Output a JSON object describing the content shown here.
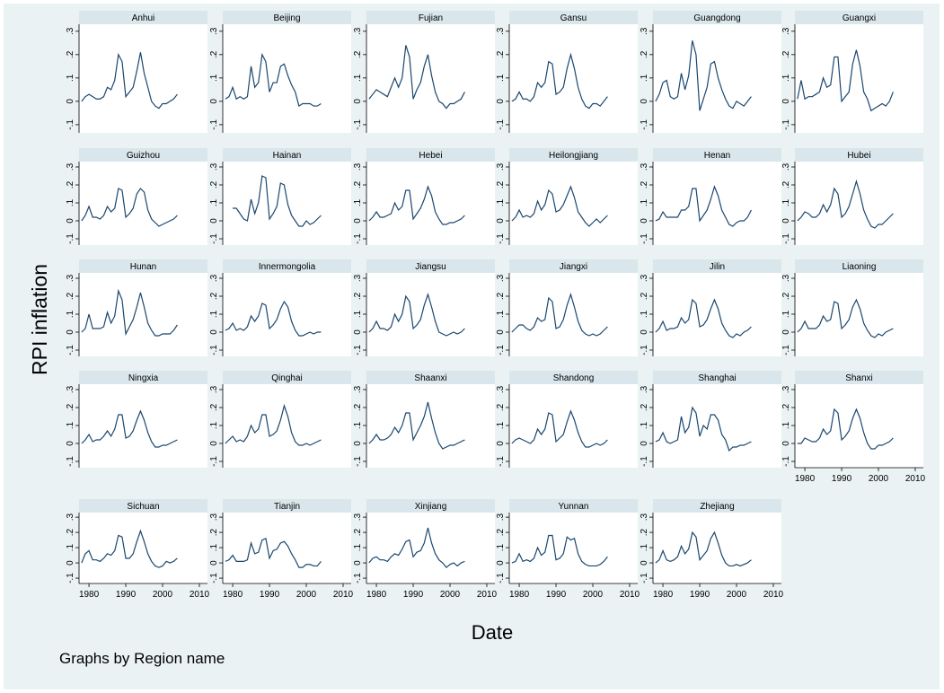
{
  "chart_data": {
    "type": "line",
    "ytitle": "RPI inflation",
    "xtitle": "Date",
    "note": "Graphs by Region name",
    "color": "#1a476f",
    "x": [
      1978,
      1979,
      1980,
      1981,
      1982,
      1983,
      1984,
      1985,
      1986,
      1987,
      1988,
      1989,
      1990,
      1991,
      1992,
      1993,
      1994,
      1995,
      1996,
      1997,
      1998,
      1999,
      2000,
      2001,
      2002,
      2003,
      2004
    ],
    "xlim": [
      1977.3,
      2012.2
    ],
    "xticks": [
      1980,
      1990,
      2000,
      2010
    ],
    "ylim": [
      -0.135,
      0.33
    ],
    "yticks": [
      {
        "value": -0.1,
        "label": "-.1"
      },
      0,
      {
        "value": 0.1,
        "label": ".1"
      },
      {
        "value": 0.2,
        "label": ".2"
      },
      {
        "value": 0.3,
        "label": ".3"
      }
    ],
    "series": [
      {
        "name": "Anhui",
        "values": [
          0.0,
          0.02,
          0.03,
          0.02,
          0.01,
          0.01,
          0.02,
          0.06,
          0.05,
          0.09,
          0.2,
          0.17,
          0.02,
          0.04,
          0.06,
          0.13,
          0.21,
          0.12,
          0.06,
          0.0,
          -0.02,
          -0.03,
          -0.01,
          -0.01,
          0.0,
          0.01,
          0.03
        ]
      },
      {
        "name": "Beijing",
        "values": [
          0.01,
          0.02,
          0.06,
          0.01,
          0.02,
          0.01,
          0.02,
          0.15,
          0.06,
          0.08,
          0.2,
          0.17,
          0.04,
          0.08,
          0.08,
          0.15,
          0.16,
          0.11,
          0.07,
          0.04,
          -0.02,
          -0.01,
          -0.01,
          -0.01,
          -0.02,
          -0.02,
          -0.01
        ]
      },
      {
        "name": "Fujian",
        "values": [
          0.01,
          0.03,
          0.05,
          0.04,
          0.03,
          0.02,
          0.06,
          0.1,
          0.06,
          0.1,
          0.24,
          0.19,
          0.01,
          0.05,
          0.08,
          0.15,
          0.2,
          0.11,
          0.04,
          0.0,
          -0.01,
          -0.03,
          -0.01,
          -0.01,
          0.0,
          0.01,
          0.04
        ]
      },
      {
        "name": "Gansu",
        "values": [
          0.0,
          0.01,
          0.04,
          0.01,
          0.01,
          0.0,
          0.02,
          0.08,
          0.06,
          0.08,
          0.17,
          0.16,
          0.03,
          0.04,
          0.06,
          0.14,
          0.2,
          0.14,
          0.06,
          0.01,
          -0.02,
          -0.03,
          -0.01,
          -0.01,
          -0.02,
          0.0,
          0.02
        ]
      },
      {
        "name": "Guangdong",
        "values": [
          0.0,
          0.03,
          0.08,
          0.09,
          0.02,
          0.01,
          0.02,
          0.12,
          0.05,
          0.11,
          0.26,
          0.2,
          -0.04,
          0.01,
          0.06,
          0.16,
          0.17,
          0.1,
          0.05,
          0.01,
          -0.02,
          -0.03,
          0.0,
          -0.01,
          -0.02,
          0.0,
          0.02
        ]
      },
      {
        "name": "Guangxi",
        "values": [
          0.01,
          0.09,
          0.01,
          0.02,
          0.02,
          0.03,
          0.04,
          0.1,
          0.06,
          0.07,
          0.19,
          0.19,
          0.0,
          0.02,
          0.04,
          0.16,
          0.22,
          0.15,
          0.04,
          0.01,
          -0.04,
          -0.03,
          -0.02,
          -0.01,
          -0.02,
          0.0,
          0.04
        ]
      },
      {
        "name": "Guizhou",
        "values": [
          0.0,
          0.03,
          0.08,
          0.02,
          0.02,
          0.01,
          0.03,
          0.08,
          0.05,
          0.07,
          0.18,
          0.17,
          0.02,
          0.04,
          0.07,
          0.15,
          0.18,
          0.16,
          0.06,
          0.01,
          -0.01,
          -0.03,
          -0.02,
          -0.01,
          0.0,
          0.01,
          0.03
        ]
      },
      {
        "name": "Hainan",
        "values": [
          null,
          null,
          0.07,
          0.07,
          0.04,
          0.01,
          0.0,
          0.12,
          0.04,
          0.1,
          0.25,
          0.24,
          0.01,
          0.04,
          0.08,
          0.21,
          0.2,
          0.09,
          0.03,
          0.0,
          -0.03,
          -0.03,
          0.0,
          -0.02,
          -0.01,
          0.01,
          0.03
        ]
      },
      {
        "name": "Hebei",
        "values": [
          0.0,
          0.02,
          0.05,
          0.02,
          0.02,
          0.03,
          0.04,
          0.1,
          0.06,
          0.08,
          0.17,
          0.17,
          0.01,
          0.04,
          0.07,
          0.12,
          0.19,
          0.14,
          0.05,
          0.01,
          -0.02,
          -0.02,
          -0.01,
          -0.01,
          0.0,
          0.01,
          0.03
        ]
      },
      {
        "name": "Heilongjiang",
        "values": [
          0.0,
          0.02,
          0.06,
          0.02,
          0.03,
          0.02,
          0.04,
          0.11,
          0.06,
          0.09,
          0.17,
          0.15,
          0.05,
          0.06,
          0.09,
          0.14,
          0.19,
          0.13,
          0.05,
          0.02,
          -0.01,
          -0.03,
          -0.01,
          0.01,
          -0.01,
          0.01,
          0.03
        ]
      },
      {
        "name": "Henan",
        "values": [
          0.0,
          0.01,
          0.05,
          0.02,
          0.02,
          0.02,
          0.02,
          0.06,
          0.06,
          0.08,
          0.18,
          0.18,
          0.0,
          0.03,
          0.06,
          0.12,
          0.19,
          0.14,
          0.06,
          0.02,
          -0.02,
          -0.03,
          -0.01,
          0.0,
          0.0,
          0.02,
          0.06
        ]
      },
      {
        "name": "Hubei",
        "values": [
          0.0,
          0.02,
          0.05,
          0.04,
          0.02,
          0.02,
          0.04,
          0.09,
          0.05,
          0.09,
          0.18,
          0.15,
          0.02,
          0.04,
          0.08,
          0.15,
          0.22,
          0.15,
          0.06,
          0.01,
          -0.03,
          -0.04,
          -0.02,
          -0.02,
          0.0,
          0.02,
          0.04
        ]
      },
      {
        "name": "Hunan",
        "values": [
          0.0,
          0.02,
          0.1,
          0.02,
          0.02,
          0.02,
          0.03,
          0.11,
          0.05,
          0.09,
          0.23,
          0.18,
          -0.01,
          0.03,
          0.07,
          0.14,
          0.22,
          0.14,
          0.05,
          0.01,
          -0.02,
          -0.02,
          -0.01,
          -0.01,
          -0.01,
          0.01,
          0.04
        ]
      },
      {
        "name": "Innermongolia",
        "values": [
          0.01,
          0.02,
          0.05,
          0.01,
          0.02,
          0.01,
          0.03,
          0.09,
          0.06,
          0.09,
          0.16,
          0.15,
          0.02,
          0.04,
          0.07,
          0.13,
          0.17,
          0.14,
          0.06,
          0.01,
          -0.02,
          -0.02,
          -0.01,
          0.0,
          -0.01,
          0.0,
          0.0
        ]
      },
      {
        "name": "Jiangsu",
        "values": [
          0.0,
          0.02,
          0.06,
          0.02,
          0.02,
          0.01,
          0.03,
          0.1,
          0.06,
          0.1,
          0.2,
          0.17,
          0.02,
          0.04,
          0.07,
          0.15,
          0.21,
          0.14,
          0.06,
          0.0,
          -0.01,
          -0.02,
          -0.01,
          0.0,
          -0.01,
          0.0,
          0.02
        ]
      },
      {
        "name": "Jiangxi",
        "values": [
          0.0,
          0.02,
          0.04,
          0.04,
          0.02,
          0.01,
          0.03,
          0.08,
          0.06,
          0.07,
          0.19,
          0.17,
          0.02,
          0.03,
          0.07,
          0.15,
          0.21,
          0.14,
          0.06,
          0.01,
          -0.01,
          -0.02,
          -0.01,
          -0.02,
          -0.01,
          0.01,
          0.03
        ]
      },
      {
        "name": "Jilin",
        "values": [
          0.0,
          0.02,
          0.06,
          0.01,
          0.02,
          0.02,
          0.03,
          0.08,
          0.05,
          0.07,
          0.18,
          0.16,
          0.03,
          0.04,
          0.07,
          0.13,
          0.18,
          0.13,
          0.05,
          0.01,
          -0.02,
          -0.03,
          -0.01,
          -0.02,
          0.0,
          0.01,
          0.03
        ]
      },
      {
        "name": "Liaoning",
        "values": [
          0.0,
          0.02,
          0.06,
          0.02,
          0.02,
          0.02,
          0.04,
          0.09,
          0.06,
          0.07,
          0.17,
          0.16,
          0.02,
          0.04,
          0.07,
          0.14,
          0.18,
          0.13,
          0.05,
          0.01,
          -0.02,
          -0.03,
          -0.01,
          -0.02,
          0.0,
          0.01,
          0.02
        ]
      },
      {
        "name": "Ningxia",
        "values": [
          0.0,
          0.02,
          0.05,
          0.01,
          0.02,
          0.02,
          0.04,
          0.07,
          0.04,
          0.08,
          0.16,
          0.16,
          0.03,
          0.04,
          0.07,
          0.13,
          0.18,
          0.13,
          0.06,
          0.01,
          -0.02,
          -0.02,
          -0.01,
          -0.01,
          0.0,
          0.01,
          0.02
        ]
      },
      {
        "name": "Qinghai",
        "values": [
          0.0,
          0.02,
          0.04,
          0.01,
          0.02,
          0.01,
          0.04,
          0.1,
          0.06,
          0.08,
          0.16,
          0.16,
          0.04,
          0.05,
          0.07,
          0.13,
          0.21,
          0.15,
          0.06,
          0.01,
          -0.01,
          -0.01,
          0.0,
          -0.01,
          0.0,
          0.01,
          0.02
        ]
      },
      {
        "name": "Shaanxi",
        "values": [
          0.0,
          0.02,
          0.05,
          0.02,
          0.02,
          0.03,
          0.05,
          0.09,
          0.06,
          0.1,
          0.17,
          0.17,
          0.02,
          0.06,
          0.1,
          0.15,
          0.23,
          0.14,
          0.06,
          0.0,
          -0.03,
          -0.02,
          -0.01,
          -0.01,
          0.0,
          0.01,
          0.02
        ]
      },
      {
        "name": "Shandong",
        "values": [
          0.0,
          0.02,
          0.03,
          0.02,
          0.01,
          0.0,
          0.02,
          0.08,
          0.05,
          0.08,
          0.17,
          0.16,
          0.01,
          0.03,
          0.05,
          0.12,
          0.18,
          0.13,
          0.06,
          0.01,
          -0.02,
          -0.02,
          -0.01,
          0.0,
          -0.01,
          0.0,
          0.02
        ]
      },
      {
        "name": "Shanghai",
        "values": [
          0.01,
          0.02,
          0.06,
          0.01,
          0.0,
          0.01,
          0.02,
          0.15,
          0.06,
          0.09,
          0.2,
          0.17,
          0.04,
          0.1,
          0.08,
          0.16,
          0.16,
          0.13,
          0.05,
          0.02,
          -0.04,
          -0.02,
          -0.02,
          -0.01,
          -0.01,
          0.0,
          0.01
        ]
      },
      {
        "name": "Shanxi",
        "values": [
          0.0,
          0.0,
          0.03,
          0.02,
          0.01,
          0.01,
          0.03,
          0.08,
          0.05,
          0.07,
          0.19,
          0.17,
          0.02,
          0.04,
          0.07,
          0.14,
          0.19,
          0.14,
          0.06,
          0.0,
          -0.03,
          -0.03,
          -0.01,
          -0.01,
          0.0,
          0.01,
          0.03
        ]
      },
      {
        "name": "Sichuan",
        "values": [
          0.0,
          0.06,
          0.08,
          0.02,
          0.02,
          0.01,
          0.03,
          0.06,
          0.05,
          0.08,
          0.18,
          0.17,
          0.03,
          0.03,
          0.06,
          0.14,
          0.21,
          0.14,
          0.06,
          0.01,
          -0.02,
          -0.03,
          -0.02,
          0.01,
          0.0,
          0.01,
          0.03
        ]
      },
      {
        "name": "Tianjin",
        "values": [
          0.01,
          0.02,
          0.05,
          0.01,
          0.01,
          0.01,
          0.02,
          0.13,
          0.06,
          0.07,
          0.15,
          0.16,
          0.03,
          0.08,
          0.09,
          0.13,
          0.14,
          0.11,
          0.06,
          0.02,
          -0.03,
          -0.03,
          -0.01,
          -0.01,
          -0.02,
          -0.02,
          0.01
        ]
      },
      {
        "name": "Xinjiang",
        "values": [
          0.0,
          0.03,
          0.04,
          0.02,
          0.02,
          0.01,
          0.04,
          0.06,
          0.05,
          0.09,
          0.14,
          0.15,
          0.04,
          0.07,
          0.08,
          0.13,
          0.23,
          0.13,
          0.06,
          0.02,
          0.0,
          -0.03,
          -0.01,
          0.0,
          -0.02,
          0.0,
          0.01
        ]
      },
      {
        "name": "Yunnan",
        "values": [
          0.0,
          0.01,
          0.06,
          0.01,
          0.02,
          0.01,
          0.03,
          0.1,
          0.05,
          0.07,
          0.18,
          0.18,
          0.02,
          0.03,
          0.06,
          0.17,
          0.15,
          0.16,
          0.06,
          0.01,
          -0.01,
          -0.02,
          -0.02,
          -0.02,
          -0.01,
          0.01,
          0.04
        ]
      },
      {
        "name": "Zhejiang",
        "values": [
          0.0,
          0.02,
          0.08,
          0.02,
          0.01,
          0.02,
          0.04,
          0.11,
          0.06,
          0.09,
          0.2,
          0.17,
          0.02,
          0.05,
          0.08,
          0.16,
          0.2,
          0.13,
          0.05,
          0.0,
          -0.02,
          -0.02,
          -0.01,
          -0.02,
          -0.01,
          0.0,
          0.02
        ]
      }
    ]
  }
}
